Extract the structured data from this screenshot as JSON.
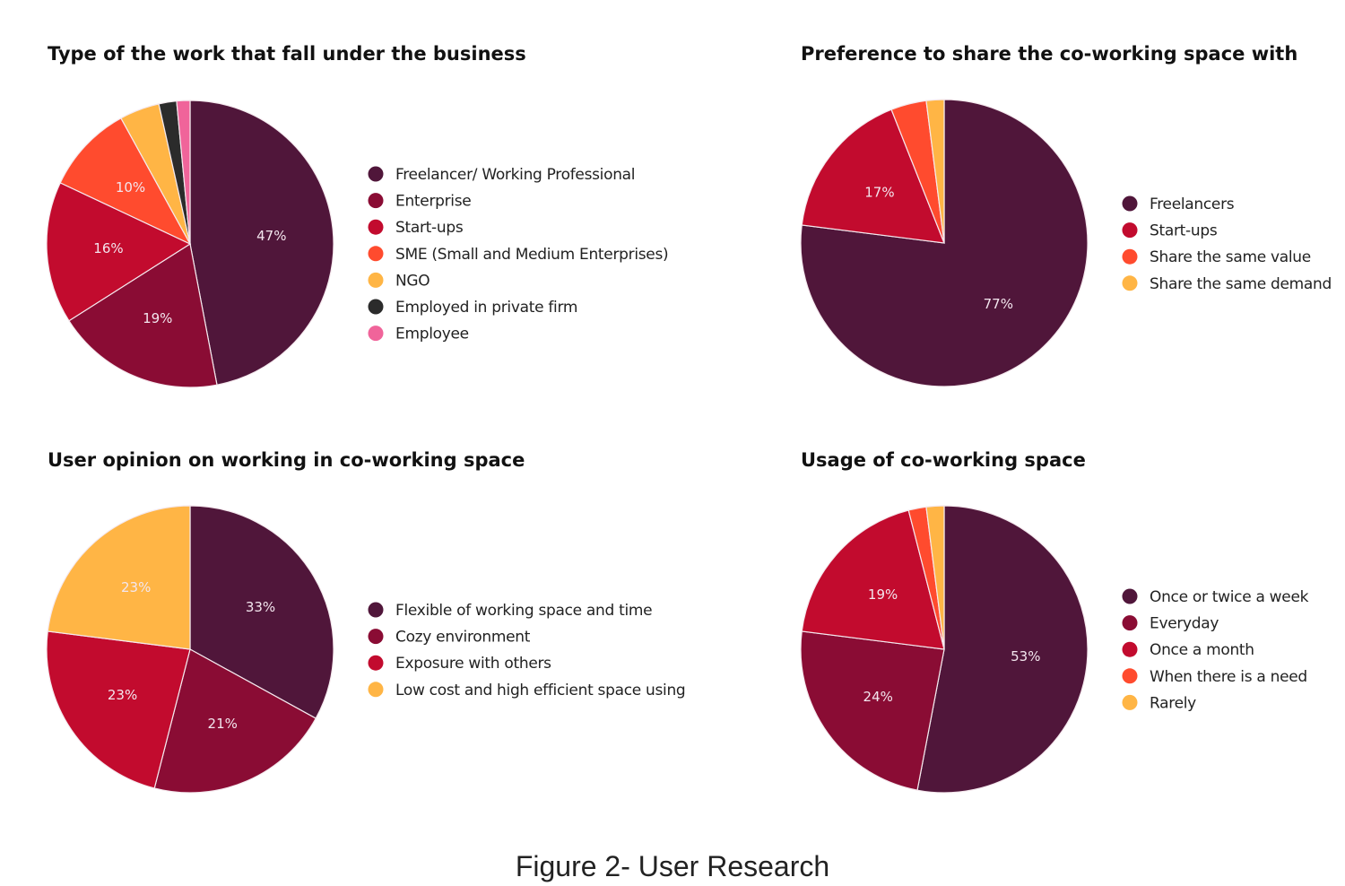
{
  "colors": {
    "dark_plum": "#50163A",
    "wine": "#8A0C34",
    "crimson": "#C20B2E",
    "orange": "#FF4B2E",
    "amber": "#FFB545",
    "charcoal": "#2B2B2B",
    "pink": "#F0649A"
  },
  "chart_data": [
    {
      "type": "pie",
      "title": "Type of the work that fall under the business",
      "legend_position": "right",
      "slices": [
        {
          "name": "Freelancer/ Working Professional",
          "value": 47,
          "label": "47%",
          "color": "#50163A"
        },
        {
          "name": "Enterprise",
          "value": 19,
          "label": "19%",
          "color": "#8A0C34"
        },
        {
          "name": "Start-ups",
          "value": 16,
          "label": "16%",
          "color": "#C20B2E"
        },
        {
          "name": "SME (Small and Medium Enterprises)",
          "value": 10,
          "label": "10%",
          "color": "#FF4B2E"
        },
        {
          "name": "NGO",
          "value": 4.5,
          "label": null,
          "color": "#FFB545"
        },
        {
          "name": "Employed in private firm",
          "value": 2,
          "label": null,
          "color": "#2B2B2B"
        },
        {
          "name": "Employee",
          "value": 1.5,
          "label": null,
          "color": "#F0649A"
        }
      ]
    },
    {
      "type": "pie",
      "title": "Preference to share the co-working space with",
      "legend_position": "right",
      "slices": [
        {
          "name": "Freelancers",
          "value": 77,
          "label": "77%",
          "color": "#50163A"
        },
        {
          "name": "Start-ups",
          "value": 17,
          "label": "17%",
          "color": "#C20B2E"
        },
        {
          "name": "Share the same value",
          "value": 4,
          "label": null,
          "color": "#FF4B2E"
        },
        {
          "name": "Share the same demand",
          "value": 2,
          "label": null,
          "color": "#FFB545"
        }
      ]
    },
    {
      "type": "pie",
      "title": "User opinion on working in co-working space",
      "legend_position": "right",
      "slices": [
        {
          "name": "Flexible of working space and time",
          "value": 33,
          "label": "33%",
          "color": "#50163A"
        },
        {
          "name": "Cozy environment",
          "value": 21,
          "label": "21%",
          "color": "#8A0C34"
        },
        {
          "name": "Exposure with others",
          "value": 23,
          "label": "23%",
          "color": "#C20B2E"
        },
        {
          "name": "Low cost and high efficient space using",
          "value": 23,
          "label": "23%",
          "color": "#FFB545"
        }
      ]
    },
    {
      "type": "pie",
      "title": "Usage of co-working space",
      "legend_position": "right",
      "slices": [
        {
          "name": "Once or twice a week",
          "value": 53,
          "label": "53%",
          "color": "#50163A"
        },
        {
          "name": "Everyday",
          "value": 24,
          "label": "24%",
          "color": "#8A0C34"
        },
        {
          "name": "Once a month",
          "value": 19,
          "label": "19%",
          "color": "#C20B2E"
        },
        {
          "name": "When there is a need",
          "value": 2,
          "label": null,
          "color": "#FF4B2E"
        },
        {
          "name": "Rarely",
          "value": 2,
          "label": null,
          "color": "#FFB545"
        }
      ]
    }
  ],
  "caption": "Figure 2- User Research"
}
